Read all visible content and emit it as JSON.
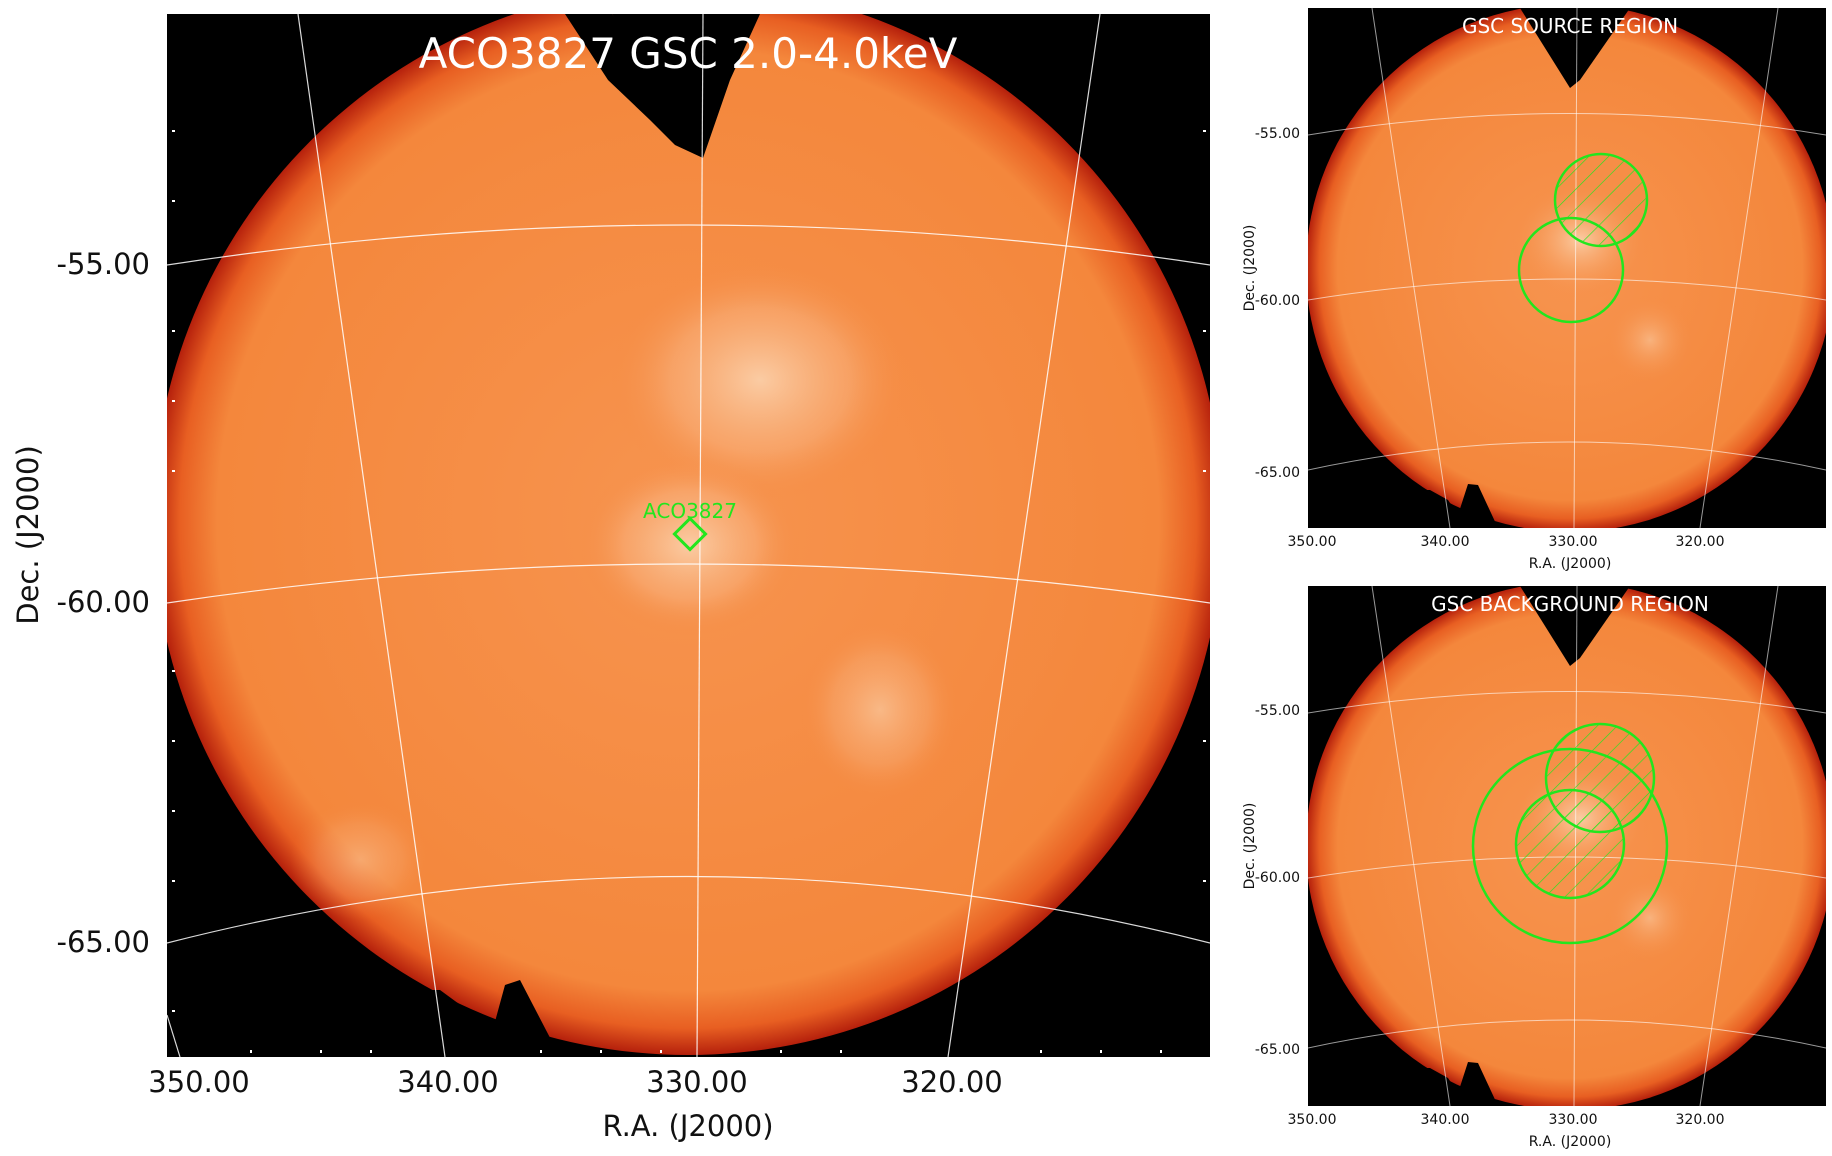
{
  "main": {
    "title": "ACO3827 GSC 2.0-4.0keV",
    "source_label": "ACO3827",
    "xlabel": "R.A. (J2000)",
    "ylabel": "Dec. (J2000)",
    "xticks": [
      "350.00",
      "340.00",
      "330.00",
      "320.00"
    ],
    "yticks": [
      "-55.00",
      "-60.00",
      "-65.00"
    ]
  },
  "source_panel": {
    "title": "GSC SOURCE REGION",
    "xlabel": "R.A. (J2000)",
    "ylabel": "Dec. (J2000)",
    "xticks": [
      "350.00",
      "340.00",
      "330.00",
      "320.00"
    ],
    "yticks": [
      "-55.00",
      "-60.00",
      "-65.00"
    ]
  },
  "background_panel": {
    "title": "GSC BACKGROUND REGION",
    "xlabel": "R.A. (J2000)",
    "ylabel": "Dec. (J2000)",
    "xticks": [
      "350.00",
      "340.00",
      "330.00",
      "320.00"
    ],
    "yticks": [
      "-55.00",
      "-60.00",
      "-65.00"
    ]
  },
  "colors": {
    "disk": "#f4883e",
    "edge": "#c0240e",
    "region": "#22e61e",
    "grid": "#ffffff"
  }
}
